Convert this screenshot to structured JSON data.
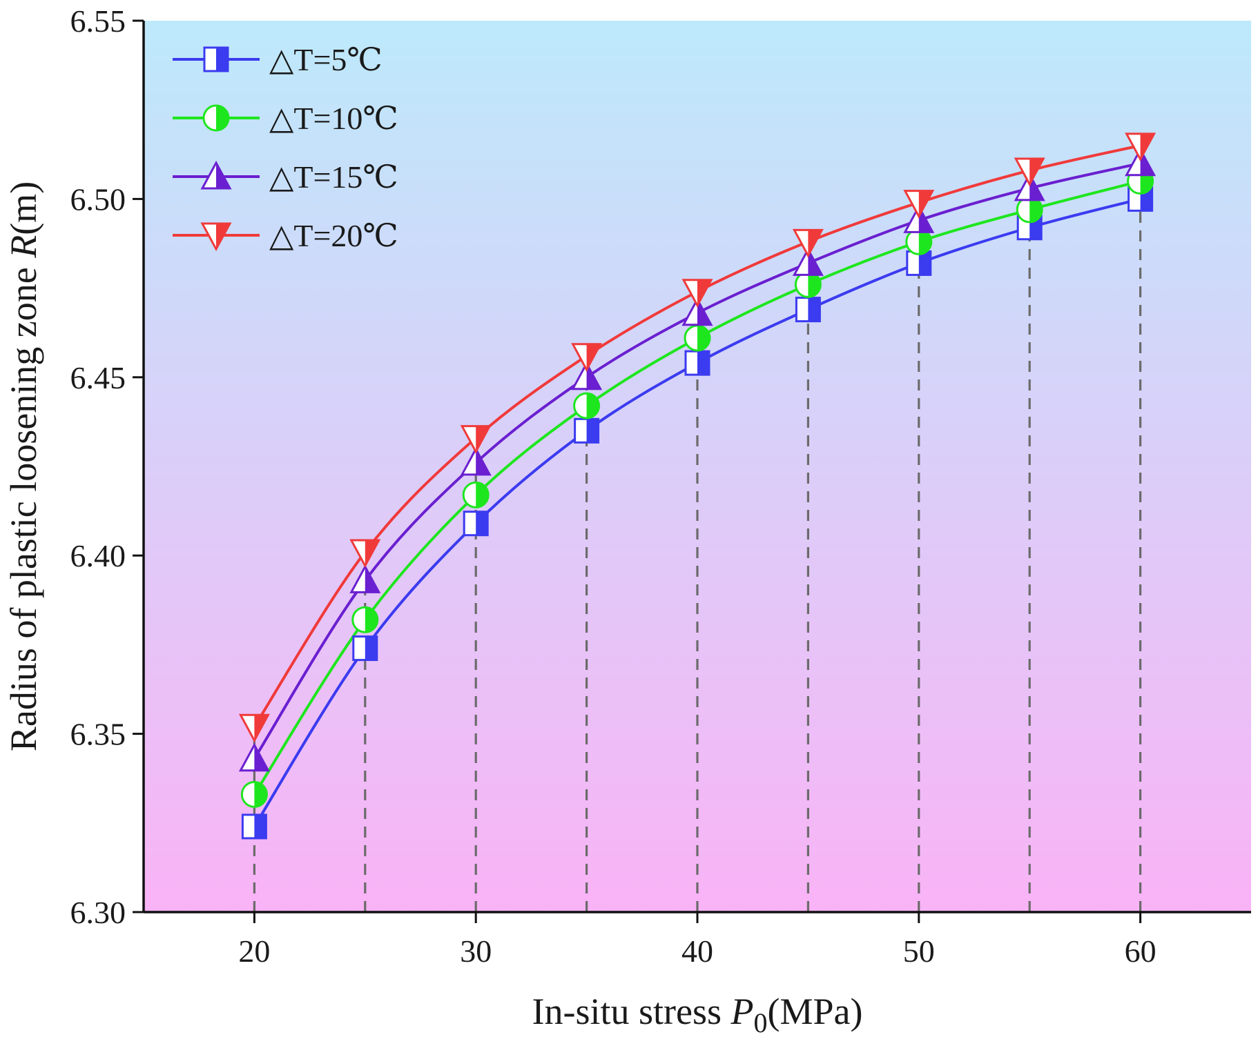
{
  "chart_data": {
    "type": "line",
    "x": [
      20,
      25,
      30,
      35,
      40,
      45,
      50,
      55,
      60
    ],
    "series": [
      {
        "name": "△T=5℃",
        "color": "#3b3bf0",
        "marker": "square",
        "values": [
          6.324,
          6.374,
          6.409,
          6.435,
          6.454,
          6.469,
          6.482,
          6.492,
          6.5
        ]
      },
      {
        "name": "△T=10℃",
        "color": "#1ee61e",
        "marker": "circle",
        "values": [
          6.333,
          6.382,
          6.417,
          6.442,
          6.461,
          6.476,
          6.488,
          6.497,
          6.505
        ]
      },
      {
        "name": "△T=15℃",
        "color": "#6a1fd0",
        "marker": "triangle-up",
        "values": [
          6.343,
          6.393,
          6.426,
          6.45,
          6.468,
          6.482,
          6.494,
          6.503,
          6.51
        ]
      },
      {
        "name": "△T=20℃",
        "color": "#f03a3a",
        "marker": "triangle-down",
        "values": [
          6.352,
          6.401,
          6.433,
          6.456,
          6.474,
          6.488,
          6.499,
          6.508,
          6.515
        ]
      }
    ],
    "xlabel_main": "In-situ stress ",
    "xlabel_var": "P",
    "xlabel_sub": "0",
    "xlabel_unit": "(MPa)",
    "ylabel_main": "Radius of plastic loosening zone ",
    "ylabel_var": "R",
    "ylabel_unit": "(m)",
    "xlim": [
      15,
      65
    ],
    "ylim": [
      6.3,
      6.55
    ],
    "xticks": [
      20,
      30,
      40,
      50,
      60
    ],
    "xtick_labels": [
      "20",
      "30",
      "40",
      "50",
      "60"
    ],
    "yticks": [
      6.3,
      6.35,
      6.4,
      6.45,
      6.5,
      6.55
    ],
    "ytick_labels": [
      "6.30",
      "6.35",
      "6.40",
      "6.45",
      "6.50",
      "6.55"
    ],
    "vertical_guides": [
      20,
      25,
      30,
      35,
      40,
      45,
      50,
      55,
      60
    ],
    "legend_position": "top-left",
    "background_gradient": [
      "#bde9fb",
      "#f9b3f6"
    ],
    "grid": false
  }
}
